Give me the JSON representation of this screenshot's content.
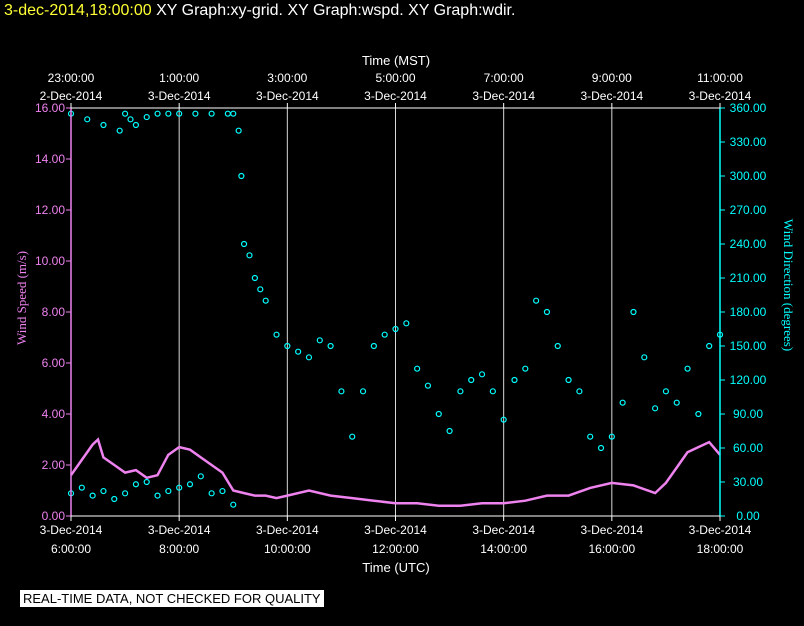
{
  "header": {
    "timestamp": "3-dec-2014,18:00:00",
    "graphs": [
      "XY Graph:xy-grid.",
      "XY Graph:wspd.",
      "XY Graph:wdir."
    ]
  },
  "footer": {
    "disclaimer": "REAL-TIME DATA, NOT CHECKED FOR QUALITY"
  },
  "colors": {
    "wspd": "#ee82ee",
    "wdir": "#00ffff",
    "grid": "#ffffff",
    "header_timestamp": "#ffff33"
  },
  "chart_data": {
    "type": "scatter",
    "x_top": {
      "title": "Time (MST)",
      "ticks": [
        {
          "time": "23:00:00",
          "date": "2-Dec-2014"
        },
        {
          "time": "1:00:00",
          "date": "3-Dec-2014"
        },
        {
          "time": "3:00:00",
          "date": "3-Dec-2014"
        },
        {
          "time": "5:00:00",
          "date": "3-Dec-2014"
        },
        {
          "time": "7:00:00",
          "date": "3-Dec-2014"
        },
        {
          "time": "9:00:00",
          "date": "3-Dec-2014"
        },
        {
          "time": "11:00:00",
          "date": "3-Dec-2014"
        }
      ]
    },
    "x_bottom": {
      "title": "Time (UTC)",
      "ticks": [
        {
          "date": "3-Dec-2014",
          "time": "6:00:00"
        },
        {
          "date": "3-Dec-2014",
          "time": "8:00:00"
        },
        {
          "date": "3-Dec-2014",
          "time": "10:00:00"
        },
        {
          "date": "3-Dec-2014",
          "time": "12:00:00"
        },
        {
          "date": "3-Dec-2014",
          "time": "14:00:00"
        },
        {
          "date": "3-Dec-2014",
          "time": "16:00:00"
        },
        {
          "date": "3-Dec-2014",
          "time": "18:00:00"
        }
      ]
    },
    "xlim_hours_utc": [
      6,
      18
    ],
    "y_left": {
      "title": "Wind Speed (m/s)",
      "ylim": [
        0,
        16
      ],
      "ticks": [
        "0.00",
        "2.00",
        "4.00",
        "6.00",
        "8.00",
        "10.00",
        "12.00",
        "14.00",
        "16.00"
      ]
    },
    "y_right": {
      "title": "Wind Direction (degrees)",
      "ylim": [
        0,
        360
      ],
      "ticks": [
        "0.00",
        "30.00",
        "60.00",
        "90.00",
        "120.00",
        "150.00",
        "180.00",
        "210.00",
        "240.00",
        "270.00",
        "300.00",
        "330.00",
        "360.00"
      ]
    },
    "grid": "vertical lines at bottom-axis ticks",
    "series": [
      {
        "key": "wspd",
        "style": "line",
        "axis": "left",
        "x": [
          6.0,
          6.2,
          6.4,
          6.5,
          6.6,
          6.8,
          7.0,
          7.2,
          7.4,
          7.6,
          7.8,
          8.0,
          8.2,
          8.4,
          8.6,
          8.8,
          9.0,
          9.2,
          9.4,
          9.6,
          9.8,
          10.0,
          10.4,
          10.8,
          11.2,
          11.6,
          12.0,
          12.4,
          12.8,
          13.2,
          13.6,
          14.0,
          14.4,
          14.8,
          15.2,
          15.6,
          16.0,
          16.4,
          16.8,
          17.0,
          17.2,
          17.4,
          17.6,
          17.8,
          18.0
        ],
        "y": [
          1.6,
          2.2,
          2.8,
          3.0,
          2.3,
          2.0,
          1.7,
          1.8,
          1.5,
          1.6,
          2.4,
          2.7,
          2.6,
          2.3,
          2.0,
          1.7,
          1.0,
          0.9,
          0.8,
          0.8,
          0.7,
          0.8,
          1.0,
          0.8,
          0.7,
          0.6,
          0.5,
          0.5,
          0.4,
          0.4,
          0.5,
          0.5,
          0.6,
          0.8,
          0.8,
          1.1,
          1.3,
          1.2,
          0.9,
          1.3,
          1.9,
          2.5,
          2.7,
          2.9,
          2.4
        ]
      },
      {
        "key": "wdir",
        "style": "points",
        "axis": "right",
        "x": [
          6.0,
          6.3,
          6.6,
          6.9,
          7.0,
          7.1,
          7.2,
          7.4,
          7.6,
          7.8,
          8.0,
          8.3,
          8.6,
          8.9,
          9.0,
          9.1,
          9.15,
          9.2,
          9.3,
          9.4,
          9.5,
          9.6,
          9.8,
          10.0,
          10.2,
          10.4,
          10.6,
          10.8,
          11.0,
          11.2,
          11.4,
          11.6,
          11.8,
          12.0,
          12.2,
          12.4,
          12.6,
          12.8,
          13.0,
          13.2,
          13.4,
          13.6,
          13.8,
          14.0,
          14.2,
          14.4,
          14.6,
          14.8,
          15.0,
          15.2,
          15.4,
          15.6,
          15.8,
          16.0,
          16.2,
          16.4,
          16.6,
          16.8,
          17.0,
          17.2,
          17.4,
          17.6,
          17.8,
          18.0
        ],
        "y": [
          355,
          350,
          345,
          340,
          355,
          350,
          345,
          352,
          355,
          355,
          355,
          355,
          355,
          355,
          355,
          340,
          300,
          240,
          230,
          210,
          200,
          190,
          160,
          150,
          145,
          140,
          155,
          150,
          110,
          70,
          110,
          150,
          160,
          165,
          170,
          130,
          115,
          90,
          75,
          110,
          120,
          125,
          110,
          85,
          120,
          130,
          190,
          180,
          150,
          120,
          110,
          70,
          60,
          70,
          100,
          180,
          140,
          95,
          110,
          100,
          130,
          90,
          150,
          160
        ]
      },
      {
        "key": "wdir_low",
        "style": "points",
        "axis": "right",
        "x": [
          6.0,
          6.2,
          6.4,
          6.6,
          6.8,
          7.0,
          7.2,
          7.4,
          7.6,
          7.8,
          8.0,
          8.2,
          8.4,
          8.6,
          8.8,
          9.0
        ],
        "y": [
          20,
          25,
          18,
          22,
          15,
          20,
          28,
          30,
          18,
          22,
          25,
          28,
          35,
          20,
          22,
          10
        ]
      }
    ]
  }
}
